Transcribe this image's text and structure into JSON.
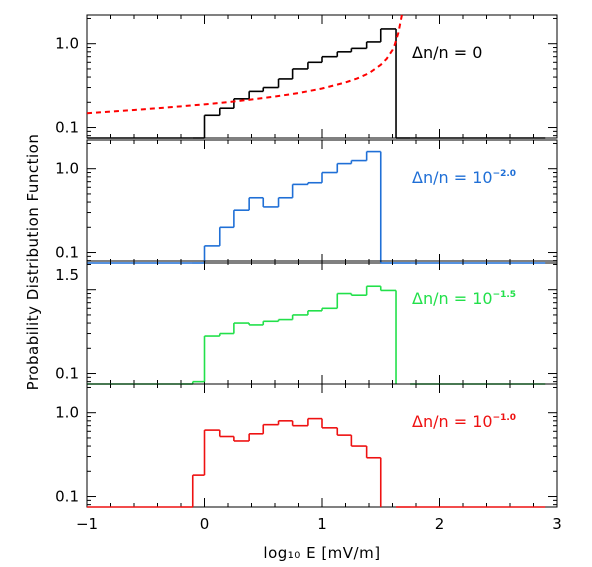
{
  "chart_data": [
    {
      "type": "line",
      "label_main": "Δn/n = 0",
      "label_exp": "",
      "color": "#000000",
      "ylabel": "",
      "xlabel": "",
      "xlim": [
        -1,
        3
      ],
      "ylim": [
        0.075,
        2.2
      ],
      "yscale": "log",
      "yticks": [
        {
          "value": 1.0,
          "label": "1.0"
        },
        {
          "value": 0.1,
          "label": "0.1"
        }
      ],
      "series": [
        {
          "style": "step",
          "floor": 0.075,
          "x": [
            -1.0,
            -0.1,
            0.0,
            0.13,
            0.25,
            0.38,
            0.5,
            0.63,
            0.75,
            0.88,
            1.0,
            1.13,
            1.25,
            1.38,
            1.5,
            1.63,
            1.75,
            2.9
          ],
          "y": [
            0.075,
            0.075,
            0.14,
            0.17,
            0.22,
            0.27,
            0.3,
            0.38,
            0.5,
            0.6,
            0.7,
            0.8,
            0.88,
            1.05,
            1.5,
            0.075,
            0.075,
            0.075
          ],
          "segments_off": []
        },
        {
          "style": "dashed",
          "color": "#ff0000",
          "x": [
            -1.0,
            -0.8,
            -0.6,
            -0.4,
            -0.2,
            0.0,
            0.2,
            0.4,
            0.6,
            0.8,
            1.0,
            1.2,
            1.3,
            1.4,
            1.5,
            1.55,
            1.6,
            1.62,
            1.65,
            1.68
          ],
          "y": [
            0.148,
            0.155,
            0.162,
            0.17,
            0.179,
            0.189,
            0.201,
            0.216,
            0.234,
            0.258,
            0.292,
            0.345,
            0.385,
            0.445,
            0.56,
            0.66,
            0.84,
            0.98,
            1.35,
            2.2
          ]
        }
      ]
    },
    {
      "type": "line",
      "label_main": "Δn/n = 10",
      "label_exp": "−2.0",
      "color": "#1f6fd6",
      "ylabel": "",
      "xlabel": "",
      "xlim": [
        -1,
        3
      ],
      "ylim": [
        0.075,
        2.2
      ],
      "yscale": "log",
      "yticks": [
        {
          "value": 1.0,
          "label": "1.0"
        },
        {
          "value": 0.1,
          "label": "0.1"
        }
      ],
      "series": [
        {
          "style": "step",
          "floor": 0.075,
          "x": [
            -1.0,
            -0.1,
            0.0,
            0.13,
            0.25,
            0.38,
            0.5,
            0.63,
            0.75,
            0.88,
            1.0,
            1.13,
            1.25,
            1.38,
            1.5,
            1.63,
            1.75,
            2.9
          ],
          "y": [
            0.075,
            0.075,
            0.12,
            0.2,
            0.32,
            0.45,
            0.35,
            0.45,
            0.65,
            0.68,
            0.9,
            1.15,
            1.25,
            1.6,
            0.075,
            0.075,
            0.075,
            0.075
          ],
          "segments_off": []
        }
      ]
    },
    {
      "type": "line",
      "label_main": "Δn/n = 10",
      "label_exp": "−1.5",
      "color": "#22e04a",
      "ylabel": "",
      "xlabel": "",
      "xlim": [
        -1,
        3
      ],
      "ylim": [
        0.075,
        2.2
      ],
      "yscale": "log",
      "yticks": [
        {
          "value": 1.5,
          "label": "1.5"
        },
        {
          "value": 0.1,
          "label": "0.1"
        }
      ],
      "series": [
        {
          "style": "step",
          "floor": 0.075,
          "x": [
            -1.0,
            -0.2,
            -0.1,
            0.0,
            0.13,
            0.25,
            0.38,
            0.5,
            0.63,
            0.75,
            0.88,
            1.0,
            1.13,
            1.25,
            1.38,
            1.5,
            1.63,
            1.75,
            2.9
          ],
          "y": [
            0.075,
            0.075,
            0.08,
            0.28,
            0.3,
            0.4,
            0.38,
            0.42,
            0.44,
            0.5,
            0.56,
            0.6,
            0.9,
            0.86,
            1.1,
            0.98,
            0.075,
            0.075,
            0.075
          ],
          "segments_off": [
            16
          ]
        }
      ]
    },
    {
      "type": "line",
      "label_main": "Δn/n = 10",
      "label_exp": "−1.0",
      "color": "#ee1111",
      "ylabel": "",
      "xlabel": "log₁₀ E [mV/m]",
      "xlim": [
        -1,
        3
      ],
      "ylim": [
        0.075,
        2.2
      ],
      "yscale": "log",
      "xticks": [
        -1,
        0,
        1,
        2,
        3
      ],
      "yticks": [
        {
          "value": 1.0,
          "label": "1.0"
        },
        {
          "value": 0.1,
          "label": "0.1"
        }
      ],
      "series": [
        {
          "style": "step",
          "floor": 0.075,
          "x": [
            -1.0,
            -0.2,
            -0.1,
            0.0,
            0.13,
            0.25,
            0.38,
            0.5,
            0.63,
            0.75,
            0.88,
            1.0,
            1.13,
            1.25,
            1.38,
            1.5,
            1.63,
            1.75,
            2.9
          ],
          "y": [
            0.075,
            0.075,
            0.18,
            0.62,
            0.52,
            0.46,
            0.56,
            0.72,
            0.8,
            0.7,
            0.85,
            0.66,
            0.54,
            0.4,
            0.29,
            0.075,
            0.075,
            0.075,
            0.075
          ],
          "segments_off": [
            15
          ]
        }
      ]
    }
  ],
  "ylabel_shared": "Probability Distribution Function"
}
